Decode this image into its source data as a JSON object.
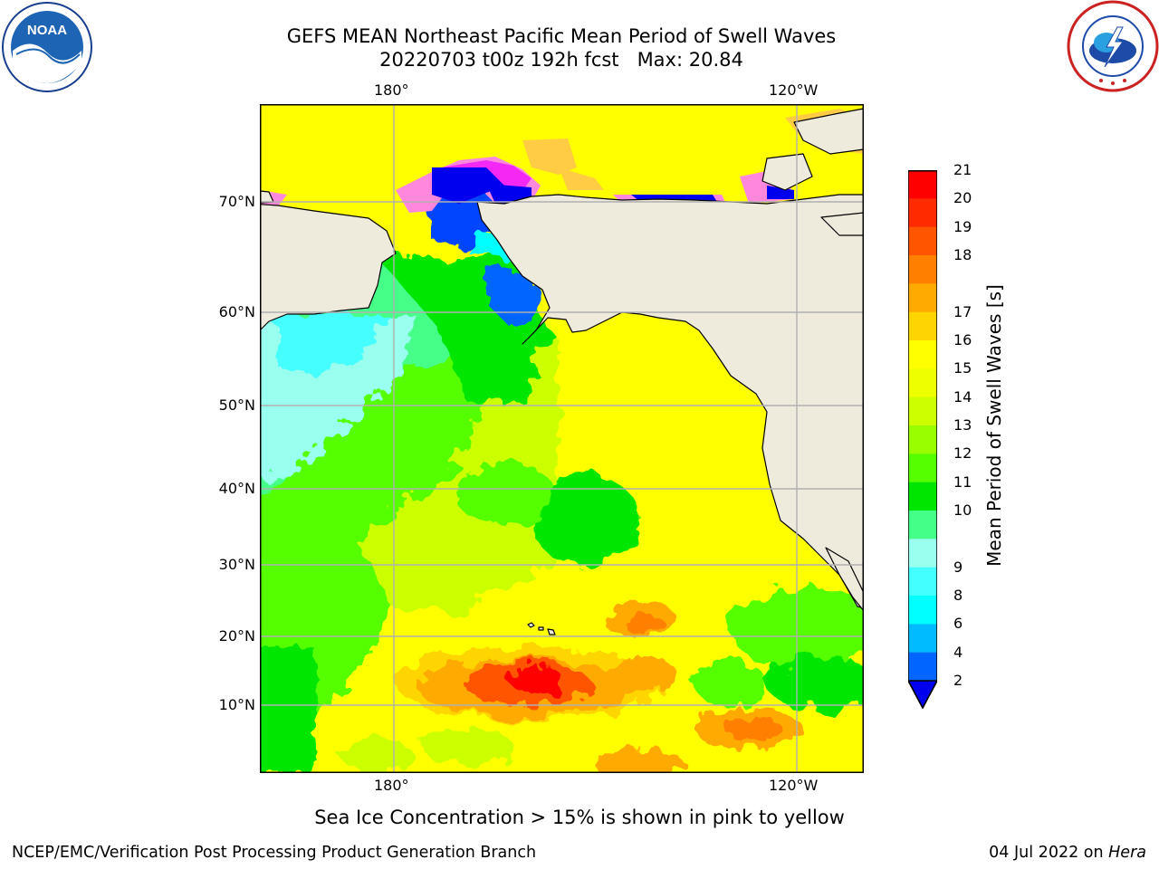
{
  "title_line1": "GEFS MEAN Northeast Pacific Mean Period of Swell Waves",
  "title_line2": "20220703 t00z 192h fcst   Max: 20.84",
  "map": {
    "lon_labels_top": [
      "180°",
      "120°W"
    ],
    "lon_labels_bottom": [
      "180°",
      "120°W"
    ],
    "lat_labels": [
      "70°N",
      "60°N",
      "50°N",
      "40°N",
      "30°N",
      "20°N",
      "10°N"
    ],
    "land_color": "#efebdc",
    "grid_color": "#b0b0b0"
  },
  "colorbar": {
    "label": "Mean Period of Swell Waves [s]",
    "ticks": [
      "21",
      "20",
      "19",
      "18",
      "17",
      "16",
      "15",
      "14",
      "13",
      "12",
      "11",
      "10",
      "9",
      "8",
      "6",
      "4",
      "2"
    ],
    "colors_top_to_bottom": [
      "#ff0000",
      "#ff2a00",
      "#ff5500",
      "#ff8000",
      "#ffaa00",
      "#ffd500",
      "#ffff00",
      "#eeff00",
      "#ccff00",
      "#99ff00",
      "#55ff00",
      "#00e600",
      "#44ff88",
      "#99ffee",
      "#44ffff",
      "#00ffff",
      "#00bbff",
      "#0066ff"
    ],
    "under_color": "#0000ee"
  },
  "ice_note": "Sea Ice Concentration > 15% is shown in pink to yellow",
  "footer": {
    "left": "NCEP/EMC/Verification Post Processing Product Generation Branch",
    "right_prefix": "04 Jul 2022 on ",
    "right_host": "Hera"
  },
  "logos": {
    "noaa_text": "NOAA",
    "nws_icon": "nws-lightning-cloud-icon"
  }
}
